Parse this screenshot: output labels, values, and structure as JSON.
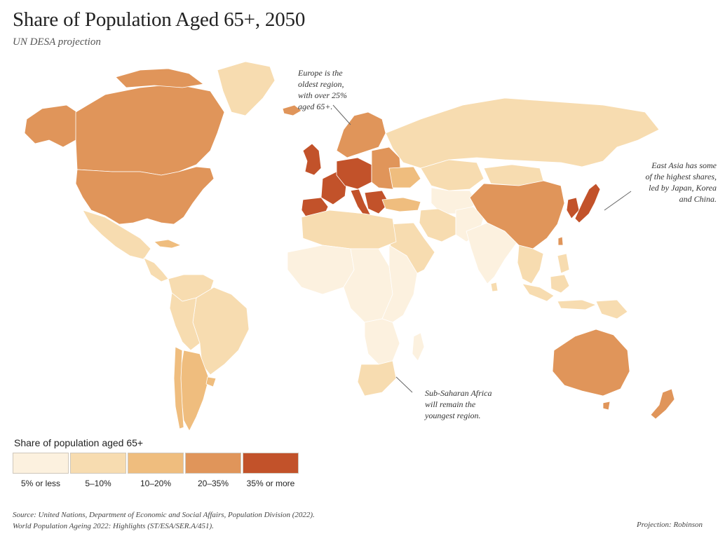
{
  "title": "Share of Population Aged 65+, 2050",
  "subtitle": "UN DESA projection",
  "colors": {
    "c1": "#fcf1df",
    "c2": "#f7dcb0",
    "c3": "#efbd7e",
    "c4": "#e0955a",
    "c5": "#c2522a",
    "background": "#ffffff"
  },
  "annotations": {
    "europe": [
      "Europe is the",
      "oldest region,",
      "with over 25%",
      "aged 65+."
    ],
    "east_asia": [
      "East Asia has some",
      "of the highest shares,",
      "led by Japan, Korea",
      "and China."
    ],
    "africa": [
      "Sub-Saharan Africa",
      "will remain the",
      "youngest region."
    ]
  },
  "legend": {
    "title": "Share of population aged 65+",
    "items": [
      {
        "label": "5% or less",
        "color": "#fcf1df"
      },
      {
        "label": "5–10%",
        "color": "#f7dcb0"
      },
      {
        "label": "10–20%",
        "color": "#efbd7e"
      },
      {
        "label": "20–35%",
        "color": "#e0955a"
      },
      {
        "label": "35% or more",
        "color": "#c2522a"
      }
    ]
  },
  "source": {
    "line1": "Source: United Nations, Department of Economic and Social Affairs, Population Division (2022).",
    "line2": "World Population Ageing 2022: Highlights (ST/ESA/SER.A/451)."
  },
  "projection": "Projection: Robinson"
}
